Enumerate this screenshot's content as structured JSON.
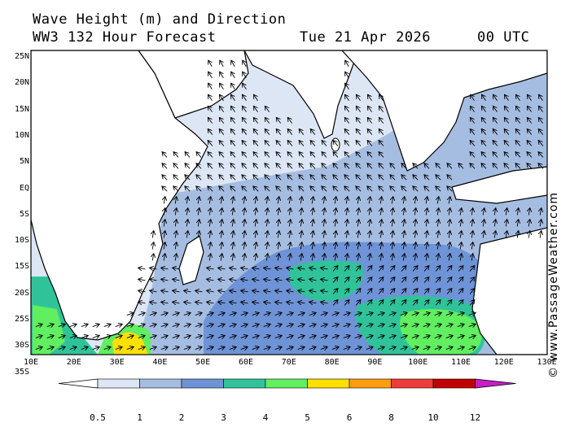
{
  "header": {
    "line1": "Wave Height (m) and Direction",
    "model": "WW3 132 Hour Forecast",
    "date": "Tue 21 Apr 2026",
    "time": "00 UTC"
  },
  "credit": "© www.PassageWeather.com",
  "lat_labels": [
    "25N",
    "20N",
    "15N",
    "10N",
    "5N",
    "EQ",
    "5S",
    "10S",
    "15S",
    "20S",
    "25S",
    "30S",
    "35S"
  ],
  "lon_labels": [
    "10E",
    "20E",
    "30E",
    "40E",
    "50E",
    "60E",
    "70E",
    "80E",
    "90E",
    "100E",
    "110E",
    "120E",
    "130E"
  ],
  "legend": {
    "labels": [
      "0.5",
      "1",
      "2",
      "3",
      "4",
      "5",
      "6",
      "8",
      "10",
      "12"
    ],
    "colors": [
      "#ffffff",
      "#dde6f4",
      "#a6bde2",
      "#6e93d6",
      "#30c39a",
      "#61ee61",
      "#ffe000",
      "#ff9d10",
      "#ef3b3b",
      "#c20000",
      "#c71ec7"
    ]
  }
}
